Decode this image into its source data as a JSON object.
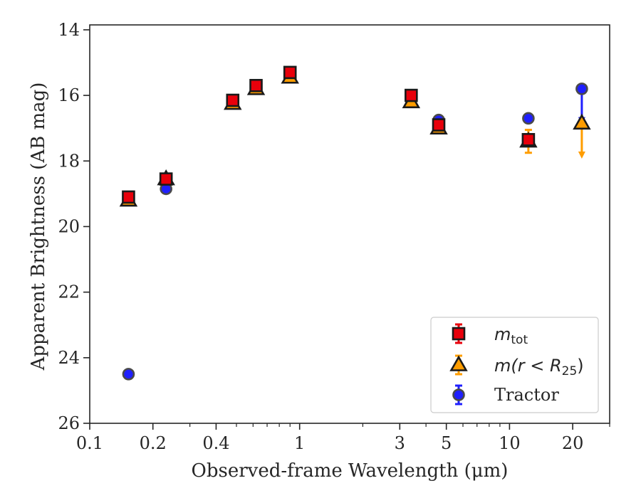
{
  "chart_data": {
    "type": "scatter",
    "xlabel": "Observed-frame Wavelength (μm)",
    "ylabel": "Apparent Brightness (AB mag)",
    "xscale": "log",
    "xlim": [
      0.1,
      30
    ],
    "ylim": [
      26,
      13.85
    ],
    "y_inverted": true,
    "x_ticks": [
      {
        "value": 0.1,
        "label": "0.1"
      },
      {
        "value": 0.2,
        "label": "0.2"
      },
      {
        "value": 0.4,
        "label": "0.4"
      },
      {
        "value": 1,
        "label": "1"
      },
      {
        "value": 3,
        "label": "3"
      },
      {
        "value": 5,
        "label": "5"
      },
      {
        "value": 10,
        "label": "10"
      },
      {
        "value": 20,
        "label": "20"
      }
    ],
    "x_minor_ticks": [
      0.3,
      0.5,
      0.6,
      0.7,
      0.8,
      0.9,
      2,
      4,
      6,
      7,
      8,
      9,
      30
    ],
    "y_ticks": [
      {
        "value": 14,
        "label": "14"
      },
      {
        "value": 16,
        "label": "16"
      },
      {
        "value": 18,
        "label": "18"
      },
      {
        "value": 20,
        "label": "20"
      },
      {
        "value": 22,
        "label": "22"
      },
      {
        "value": 24,
        "label": "24"
      },
      {
        "value": 26,
        "label": "26"
      }
    ],
    "legend_position": "lower-right",
    "series": [
      {
        "key": "mtot",
        "label_main": "m",
        "label_sub": "tot",
        "marker": "square",
        "color": "#e8000b",
        "edge": "#1a1a1a",
        "points": [
          {
            "x": 0.153,
            "y": 19.1,
            "err": 0.12
          },
          {
            "x": 0.231,
            "y": 18.55,
            "err": 0.1
          },
          {
            "x": 0.48,
            "y": 16.15,
            "err": 0.08
          },
          {
            "x": 0.62,
            "y": 15.7,
            "err": 0.07
          },
          {
            "x": 0.9,
            "y": 15.3,
            "err": 0.07
          },
          {
            "x": 3.4,
            "y": 16.0,
            "err": 0.07
          },
          {
            "x": 4.6,
            "y": 16.9,
            "err": 0.08
          },
          {
            "x": 12.3,
            "y": 17.35,
            "err": 0.12
          }
        ]
      },
      {
        "key": "mr25",
        "label_main": "m(r < R",
        "label_sub": "25",
        "label_tail": ")",
        "marker": "triangle",
        "color": "#ff9d00",
        "edge": "#1a1a1a",
        "points": [
          {
            "x": 0.153,
            "y": 19.2,
            "err": 0.12
          },
          {
            "x": 0.231,
            "y": 18.55,
            "err": 0.12
          },
          {
            "x": 0.48,
            "y": 16.25,
            "err": 0.08
          },
          {
            "x": 0.62,
            "y": 15.8,
            "err": 0.07
          },
          {
            "x": 0.9,
            "y": 15.45,
            "err": 0.07
          },
          {
            "x": 3.4,
            "y": 16.2,
            "err": 0.07
          },
          {
            "x": 4.6,
            "y": 17.0,
            "err": 0.1
          },
          {
            "x": 12.3,
            "y": 17.4,
            "err": 0.35
          },
          {
            "x": 22.1,
            "y": 16.85,
            "upper_limit_to": 17.8
          }
        ]
      },
      {
        "key": "tractor",
        "label_main": "Tractor",
        "marker": "circle",
        "color": "#1f1fff",
        "edge": "#4a4a4a",
        "points": [
          {
            "x": 0.153,
            "y": 24.5,
            "err": 0.05
          },
          {
            "x": 0.231,
            "y": 18.85,
            "err": 0.05
          },
          {
            "x": 0.48,
            "y": 16.2,
            "err": 0.05
          },
          {
            "x": 0.62,
            "y": 15.75,
            "err": 0.05
          },
          {
            "x": 0.9,
            "y": 15.45,
            "err": 0.05
          },
          {
            "x": 3.4,
            "y": 16.1,
            "err": 0.05
          },
          {
            "x": 4.6,
            "y": 16.75,
            "err": 0.05
          },
          {
            "x": 12.3,
            "y": 16.7,
            "err": 0.05
          },
          {
            "x": 22.1,
            "y": 15.8,
            "upper_limit_to": 16.75
          }
        ]
      }
    ]
  }
}
